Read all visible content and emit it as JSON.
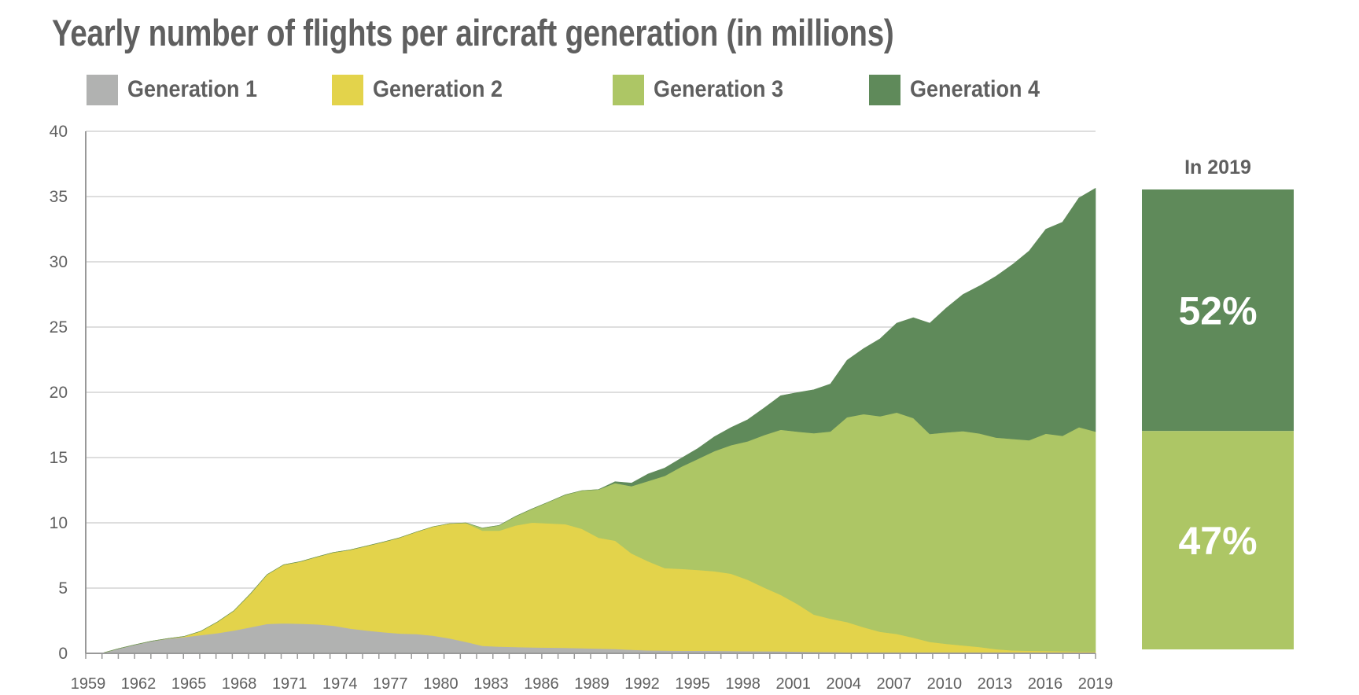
{
  "chart_data": {
    "type": "area",
    "stacked": true,
    "title": "Yearly number of flights per aircraft generation (in millions)",
    "xlabel": "",
    "ylabel": "",
    "ylim": [
      0,
      40
    ],
    "yticks": [
      0,
      5,
      10,
      15,
      20,
      25,
      30,
      35,
      40
    ],
    "xlim": [
      1959,
      2019
    ],
    "xtick_labels": [
      "1959",
      "1962",
      "1965",
      "1968",
      "1971",
      "1974",
      "1977",
      "1980",
      "1983",
      "1986",
      "1989",
      "1992",
      "1995",
      "1998",
      "2001",
      "2004",
      "2007",
      "2010",
      "2013",
      "2016",
      "2019"
    ],
    "grid": "horizontal",
    "legend_position": "top",
    "x": [
      1959,
      1960,
      1961,
      1962,
      1963,
      1964,
      1965,
      1966,
      1967,
      1968,
      1969,
      1970,
      1971,
      1972,
      1973,
      1974,
      1975,
      1976,
      1977,
      1978,
      1979,
      1980,
      1981,
      1982,
      1983,
      1984,
      1985,
      1986,
      1987,
      1988,
      1989,
      1990,
      1991,
      1992,
      1993,
      1994,
      1995,
      1996,
      1997,
      1998,
      1999,
      2000,
      2001,
      2002,
      2003,
      2004,
      2005,
      2006,
      2007,
      2008,
      2009,
      2010,
      2011,
      2012,
      2013,
      2014,
      2015,
      2016,
      2017,
      2018,
      2019
    ],
    "series": [
      {
        "name": "Generation 1",
        "color": "#b1b2b1",
        "values": [
          0,
          0.35,
          0.65,
          0.93,
          1.12,
          1.25,
          1.4,
          1.55,
          1.75,
          2.0,
          2.25,
          2.3,
          2.27,
          2.22,
          2.12,
          1.9,
          1.75,
          1.62,
          1.52,
          1.48,
          1.36,
          1.15,
          0.88,
          0.58,
          0.52,
          0.48,
          0.46,
          0.44,
          0.42,
          0.4,
          0.37,
          0.34,
          0.27,
          0.23,
          0.21,
          0.2,
          0.2,
          0.19,
          0.18,
          0.17,
          0.16,
          0.15,
          0.13,
          0.11,
          0.1,
          0.08,
          0.06,
          0.05,
          0.04,
          0.03,
          0.02,
          0.02,
          0.01,
          0.01,
          0.01,
          0.01,
          0.01,
          0.01,
          0.01,
          0.01,
          0.01
        ]
      },
      {
        "name": "Generation 2",
        "color": "#e3d34b",
        "values": [
          0,
          0,
          0,
          0,
          0.01,
          0.05,
          0.3,
          0.86,
          1.52,
          2.58,
          3.79,
          4.49,
          4.76,
          5.17,
          5.61,
          6.03,
          6.48,
          6.91,
          7.34,
          7.82,
          8.34,
          8.79,
          9.1,
          8.82,
          8.88,
          9.32,
          9.56,
          9.52,
          9.48,
          9.14,
          8.49,
          8.29,
          7.38,
          6.82,
          6.32,
          6.27,
          6.19,
          6.1,
          5.92,
          5.47,
          4.88,
          4.33,
          3.65,
          2.86,
          2.55,
          2.32,
          1.94,
          1.6,
          1.45,
          1.17,
          0.86,
          0.7,
          0.59,
          0.47,
          0.31,
          0.21,
          0.19,
          0.17,
          0.15,
          0.13,
          0.11
        ]
      },
      {
        "name": "Generation 3",
        "color": "#adc665",
        "values": [
          0,
          0,
          0,
          0,
          0,
          0,
          0,
          0,
          0,
          0,
          0,
          0,
          0,
          0,
          0,
          0,
          0,
          0,
          0,
          0,
          0,
          0,
          0.02,
          0.2,
          0.4,
          0.7,
          1.05,
          1.64,
          2.25,
          2.93,
          3.69,
          4.42,
          5.16,
          6.15,
          7.07,
          7.83,
          8.51,
          9.21,
          9.85,
          10.61,
          11.69,
          12.65,
          13.21,
          13.9,
          14.35,
          15.69,
          16.33,
          16.52,
          16.96,
          16.83,
          15.93,
          16.21,
          16.43,
          16.37,
          16.21,
          16.21,
          16.13,
          16.65,
          16.51,
          17.19,
          16.87
        ]
      },
      {
        "name": "Generation 4",
        "color": "#5f8a5a",
        "values": [
          0,
          0,
          0,
          0,
          0,
          0,
          0,
          0,
          0,
          0,
          0,
          0,
          0,
          0,
          0,
          0,
          0,
          0,
          0,
          0,
          0,
          0,
          0,
          0,
          0,
          0,
          0,
          0,
          0,
          0,
          0,
          0.1,
          0.24,
          0.55,
          0.6,
          0.66,
          0.8,
          1.1,
          1.35,
          1.65,
          2.07,
          2.61,
          2.99,
          3.33,
          3.64,
          4.36,
          5.02,
          5.93,
          6.85,
          7.69,
          8.49,
          9.54,
          10.47,
          11.3,
          12.37,
          13.37,
          14.51,
          15.67,
          16.36,
          17.57,
          18.65
        ]
      }
    ],
    "side_bar": {
      "title": "In 2019",
      "segments": [
        {
          "name": "Generation 4",
          "share_pct": 52,
          "label": "52%",
          "color": "#5f8a5a"
        },
        {
          "name": "Generation 3",
          "share_pct": 47,
          "label": "47%",
          "color": "#adc665"
        }
      ]
    }
  },
  "legend": [
    {
      "label": "Generation 1",
      "color": "#b1b2b1"
    },
    {
      "label": "Generation 2",
      "color": "#e3d34b"
    },
    {
      "label": "Generation 3",
      "color": "#adc665"
    },
    {
      "label": "Generation 4",
      "color": "#5f8a5a"
    }
  ]
}
